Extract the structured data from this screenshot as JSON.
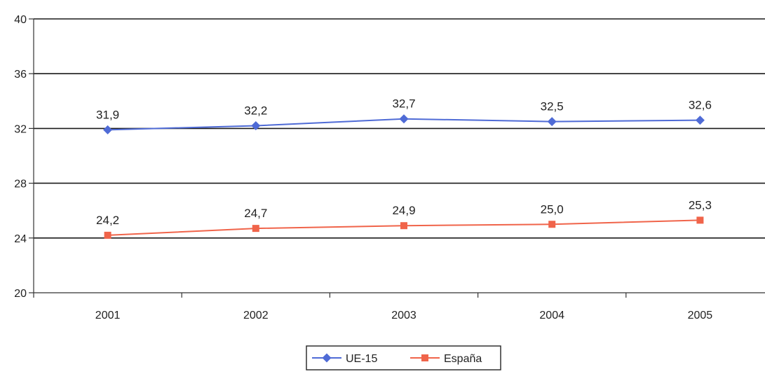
{
  "chart_data": {
    "type": "line",
    "title": "",
    "xlabel": "",
    "ylabel": "",
    "categories": [
      "2001",
      "2002",
      "2003",
      "2004",
      "2005"
    ],
    "ylim": [
      20,
      40
    ],
    "yticks": [
      20,
      24,
      28,
      32,
      36,
      40
    ],
    "grid": true,
    "legend_position": "bottom",
    "series": [
      {
        "name": "UE-15",
        "values": [
          31.9,
          32.2,
          32.7,
          32.5,
          32.6
        ],
        "labels": [
          "31,9",
          "32,2",
          "32,7",
          "32,5",
          "32,6"
        ],
        "color": "#4f6bd6",
        "marker": "diamond"
      },
      {
        "name": "España",
        "values": [
          24.2,
          24.7,
          24.9,
          25.0,
          25.3
        ],
        "labels": [
          "24,2",
          "24,7",
          "24,9",
          "25,0",
          "25,3"
        ],
        "color": "#f0644a",
        "marker": "square"
      }
    ]
  }
}
